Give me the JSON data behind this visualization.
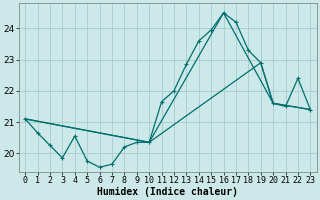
{
  "title": "",
  "xlabel": "Humidex (Indice chaleur)",
  "bg_color": "#cce8e8",
  "grid_color": "#b0d8d8",
  "line_color": "#007070",
  "xlim": [
    -0.5,
    23.5
  ],
  "ylim": [
    19.4,
    24.8
  ],
  "yticks": [
    20,
    21,
    22,
    23,
    24
  ],
  "xticks": [
    0,
    1,
    2,
    3,
    4,
    5,
    6,
    7,
    8,
    9,
    10,
    11,
    12,
    13,
    14,
    15,
    16,
    17,
    18,
    19,
    20,
    21,
    22,
    23
  ],
  "line1_x": [
    0,
    1,
    2,
    3,
    4,
    5,
    6,
    7,
    8,
    9,
    10,
    11,
    12,
    13,
    14,
    15,
    16,
    17,
    18,
    19,
    20,
    21,
    22,
    23
  ],
  "line1_y": [
    21.1,
    20.65,
    20.25,
    19.85,
    20.55,
    19.75,
    19.55,
    19.65,
    20.2,
    20.35,
    20.35,
    21.65,
    22.0,
    22.85,
    23.6,
    23.95,
    24.5,
    24.2,
    23.3,
    22.9,
    21.6,
    21.5,
    22.4,
    21.4
  ],
  "line2_x": [
    0,
    10,
    16,
    20,
    23
  ],
  "line2_y": [
    21.1,
    20.35,
    24.5,
    21.6,
    21.4
  ],
  "line3_x": [
    0,
    10,
    19,
    20,
    23
  ],
  "line3_y": [
    21.1,
    20.35,
    22.9,
    21.6,
    21.4
  ]
}
